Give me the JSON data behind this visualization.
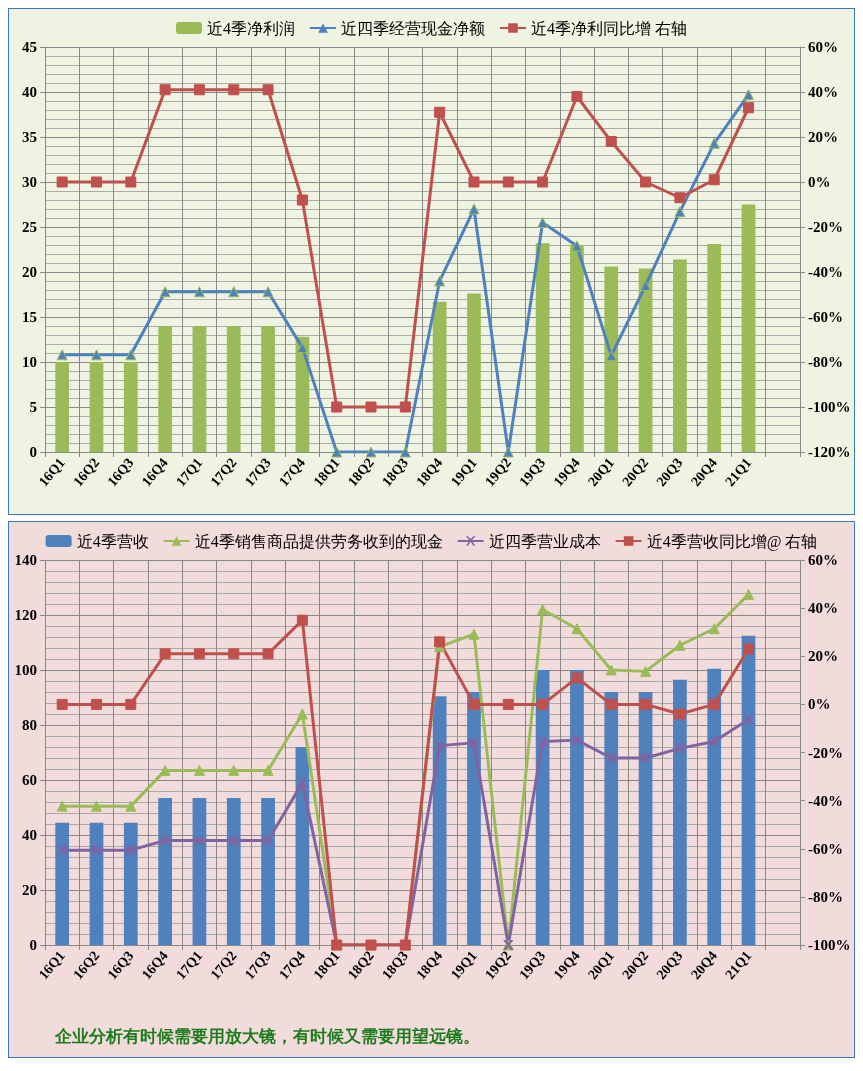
{
  "chart_data": [
    {
      "type": "bar",
      "categories": [
        "16Q1",
        "16Q2",
        "16Q3",
        "16Q4",
        "17Q1",
        "17Q2",
        "17Q3",
        "17Q4",
        "18Q1",
        "18Q2",
        "18Q3",
        "18Q4",
        "19Q1",
        "19Q2",
        "19Q3",
        "19Q4",
        "20Q1",
        "20Q2",
        "20Q3",
        "20Q4",
        "21Q1",
        null
      ],
      "series": [
        {
          "name": "近4季净利润",
          "color": "#9bbb59",
          "values": [
            10,
            10,
            10,
            14,
            14,
            14,
            14,
            12.8,
            null,
            null,
            null,
            16.7,
            17.6,
            null,
            23.2,
            23,
            20.6,
            20.4,
            21.4,
            23.1,
            27.5,
            null
          ]
        },
        {
          "name": "近四季经营现金净额",
          "type": "line",
          "color": "#4f81bd",
          "marker": "triangle",
          "values": [
            10.8,
            10.8,
            10.8,
            17.8,
            17.8,
            17.8,
            17.8,
            11.6,
            0,
            0,
            0,
            19,
            27,
            0,
            25.5,
            22.9,
            10.7,
            18.5,
            26.7,
            34.3,
            39.7,
            null
          ]
        },
        {
          "name": "近4季净利同比增 右轴",
          "type": "line",
          "color": "#c0504d",
          "marker": "square",
          "axis": "y2",
          "values": [
            0,
            0,
            0,
            41,
            41,
            41,
            41,
            -8,
            -100,
            -100,
            -100,
            31,
            0,
            0,
            0,
            38,
            18,
            0,
            -7,
            1,
            33,
            null
          ]
        }
      ],
      "ylim": [
        0,
        45
      ],
      "yticks": [
        0,
        5,
        10,
        15,
        20,
        25,
        30,
        35,
        40,
        45
      ],
      "y2lim": [
        -120,
        60
      ],
      "y2ticks": [
        {
          "value": -120,
          "label": "-120%"
        },
        {
          "value": -100,
          "label": "-100%"
        },
        {
          "value": -80,
          "label": "-80%"
        },
        {
          "value": -60,
          "label": "-60%"
        },
        {
          "value": -40,
          "label": "-40%"
        },
        {
          "value": -20,
          "label": "-20%"
        },
        {
          "value": 0,
          "label": "0%"
        },
        {
          "value": 20,
          "label": "20%"
        },
        {
          "value": 40,
          "label": "40%"
        },
        {
          "value": 60,
          "label": "60%"
        }
      ],
      "grid": true,
      "legend": "top"
    },
    {
      "type": "bar",
      "categories": [
        "16Q1",
        "16Q2",
        "16Q3",
        "16Q4",
        "17Q1",
        "17Q2",
        "17Q3",
        "17Q4",
        "18Q1",
        "18Q2",
        "18Q3",
        "18Q4",
        "19Q1",
        "19Q2",
        "19Q3",
        "19Q4",
        "20Q1",
        "20Q2",
        "20Q3",
        "20Q4",
        "21Q1",
        null
      ],
      "series": [
        {
          "name": "近4季营收",
          "color": "#4f81bd",
          "values": [
            44.5,
            44.5,
            44.5,
            53.5,
            53.5,
            53.5,
            53.5,
            72,
            null,
            null,
            null,
            90.5,
            92,
            null,
            100,
            100,
            92,
            92,
            96.5,
            100.5,
            112.5,
            null
          ]
        },
        {
          "name": "近4季销售商品提供劳务收到的现金",
          "type": "line",
          "color": "#9bbb59",
          "marker": "triangle",
          "values": [
            50.5,
            50.5,
            50.5,
            63.5,
            63.5,
            63.5,
            63.5,
            84,
            0,
            0,
            0,
            108.5,
            113,
            0,
            122,
            115,
            100,
            99.5,
            109,
            115,
            127.5,
            null
          ]
        },
        {
          "name": "近四季营业成本",
          "type": "line",
          "color": "#8064a2",
          "marker": "cross",
          "values": [
            34.5,
            34.5,
            34.5,
            38,
            38,
            38,
            38,
            59,
            0,
            0,
            0,
            72.5,
            73.5,
            0,
            74,
            74.5,
            68,
            68,
            71.5,
            74,
            82,
            null
          ]
        },
        {
          "name": "近4季营收同比增@ 右轴",
          "type": "line",
          "color": "#c0504d",
          "marker": "square",
          "axis": "y2",
          "values": [
            0,
            0,
            0,
            21,
            21,
            21,
            21,
            35,
            -100,
            -100,
            -100,
            26,
            0,
            0,
            0,
            11,
            0,
            0,
            -4,
            0,
            23,
            null
          ]
        }
      ],
      "ylim": [
        0,
        140
      ],
      "yticks": [
        0,
        20,
        40,
        60,
        80,
        100,
        120,
        140
      ],
      "y2lim": [
        -100,
        60
      ],
      "y2ticks": [
        {
          "value": -100,
          "label": "-100%"
        },
        {
          "value": -80,
          "label": "-80%"
        },
        {
          "value": -60,
          "label": "-60%"
        },
        {
          "value": -40,
          "label": "-40%"
        },
        {
          "value": -20,
          "label": "-20%"
        },
        {
          "value": 0,
          "label": "0%"
        },
        {
          "value": 20,
          "label": "20%"
        },
        {
          "value": 40,
          "label": "40%"
        },
        {
          "value": 60,
          "label": "60%"
        }
      ],
      "grid": true,
      "legend": "top",
      "annotations": [
        "企业分析有时候需要用放大镜，有时候又需要用望远镜。"
      ]
    }
  ]
}
